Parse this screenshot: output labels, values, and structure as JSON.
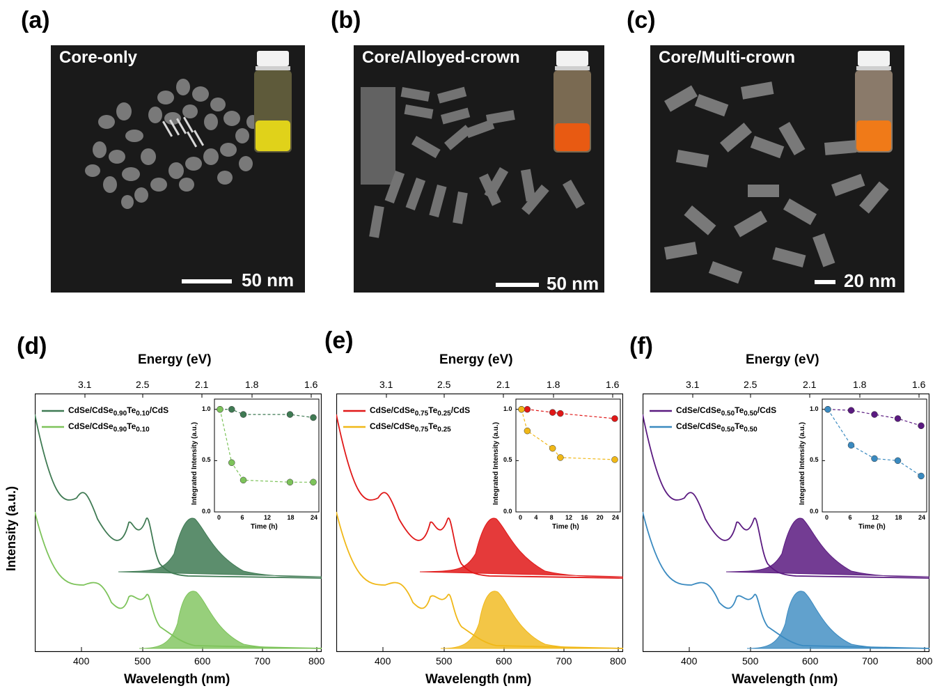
{
  "labels": {
    "a": "(a)",
    "b": "(b)",
    "c": "(c)",
    "d": "(d)",
    "e": "(e)",
    "f": "(f)"
  },
  "tem": [
    {
      "title": "Core-only",
      "scale": "50 nm",
      "liquid_color": "#e0d21a"
    },
    {
      "title": "Core/Alloyed-crown",
      "scale": "50 nm",
      "liquid_color": "#e85a12"
    },
    {
      "title": "Core/Multi-crown",
      "scale": "20 nm",
      "liquid_color": "#f07a18"
    }
  ],
  "spectra_common": {
    "energy_title": "Energy (eV)",
    "wavelength_title": "Wavelength (nm)",
    "intensity_title": "Intensity (a.u.)",
    "energy_ticks": [
      "3.1",
      "2.5",
      "2.1",
      "1.8",
      "1.6"
    ],
    "wavelength_ticks_d": [
      "400",
      "500",
      "600",
      "700",
      "800"
    ],
    "wavelength_ticks_e": [
      "400",
      "500",
      "600",
      "700",
      "800"
    ],
    "wavelength_ticks_f": [
      "400",
      "500",
      "600",
      "700",
      "800"
    ],
    "inset_ylabel": "Integrated Intensity (a.u.)",
    "inset_xlabel": "Time (h)",
    "inset_yticks": [
      "0.0",
      "0.5",
      "1.0"
    ],
    "inset_xticks_a": [
      "0",
      "6",
      "12",
      "18",
      "24"
    ],
    "inset_xticks_b": [
      "0",
      "4",
      "8",
      "12",
      "16",
      "20",
      "24"
    ],
    "inset_xticks_c": [
      "0",
      "6",
      "12",
      "18",
      "24"
    ]
  },
  "panels": [
    {
      "id": "d",
      "legend1_base": "CdSe/CdSe",
      "legend1_sub1": "0.90",
      "legend1_mid": "Te",
      "legend1_sub2": "0.10",
      "legend1_tail": "/CdS",
      "legend2_base": "CdSe/CdSe",
      "legend2_sub1": "0.90",
      "legend2_mid": "Te",
      "legend2_sub2": "0.10",
      "color1": "#3f7a53",
      "color2": "#7dc35a"
    },
    {
      "id": "e",
      "legend1_base": "CdSe/CdSe",
      "legend1_sub1": "0.75",
      "legend1_mid": "Te",
      "legend1_sub2": "0.25",
      "legend1_tail": "/CdS",
      "legend2_base": "CdSe/CdSe",
      "legend2_sub1": "0.75",
      "legend2_mid": "Te",
      "legend2_sub2": "0.25",
      "color1": "#e01818",
      "color2": "#f0b818"
    },
    {
      "id": "f",
      "legend1_base": "CdSe/CdSe",
      "legend1_sub1": "0.50",
      "legend1_mid": "Te",
      "legend1_sub2": "0.50",
      "legend1_tail": "/CdS",
      "legend2_base": "CdSe/CdSe",
      "legend2_sub1": "0.50",
      "legend2_mid": "Te",
      "legend2_sub2": "0.50",
      "color1": "#5a1a80",
      "color2": "#3a8ac0"
    }
  ],
  "chart_data": [
    {
      "type": "line",
      "panel": "d-inset",
      "xlabel": "Time (h)",
      "ylabel": "Integrated Intensity (a.u.)",
      "ylim": [
        0,
        1.1
      ],
      "series": [
        {
          "name": "CdSe/CdSe0.90Te0.10/CdS",
          "x": [
            0,
            3,
            6,
            18,
            24
          ],
          "values": [
            1.0,
            1.0,
            0.95,
            0.95,
            0.92
          ]
        },
        {
          "name": "CdSe/CdSe0.90Te0.10",
          "x": [
            0,
            3,
            6,
            18,
            24
          ],
          "values": [
            1.0,
            0.48,
            0.31,
            0.29,
            0.29
          ]
        }
      ]
    },
    {
      "type": "line",
      "panel": "e-inset",
      "xlabel": "Time (h)",
      "ylabel": "Integrated Intensity (a.u.)",
      "ylim": [
        0,
        1.1
      ],
      "series": [
        {
          "name": "CdSe/CdSe0.75Te0.25/CdS",
          "x": [
            0,
            1.5,
            8,
            10,
            24
          ],
          "values": [
            1.0,
            1.0,
            0.97,
            0.96,
            0.91
          ]
        },
        {
          "name": "CdSe/CdSe0.75Te0.25",
          "x": [
            0,
            1.5,
            8,
            10,
            24
          ],
          "values": [
            1.0,
            0.79,
            0.62,
            0.53,
            0.51
          ]
        }
      ]
    },
    {
      "type": "line",
      "panel": "f-inset",
      "xlabel": "Time (h)",
      "ylabel": "Integrated Intensity (a.u.)",
      "ylim": [
        0,
        1.1
      ],
      "series": [
        {
          "name": "CdSe/CdSe0.50Te0.50/CdS",
          "x": [
            0,
            6,
            12,
            18,
            24
          ],
          "values": [
            1.0,
            0.99,
            0.95,
            0.91,
            0.84
          ]
        },
        {
          "name": "CdSe/CdSe0.50Te0.50",
          "x": [
            0,
            6,
            12,
            18,
            24
          ],
          "values": [
            1.0,
            0.65,
            0.52,
            0.5,
            0.35
          ]
        }
      ]
    }
  ]
}
